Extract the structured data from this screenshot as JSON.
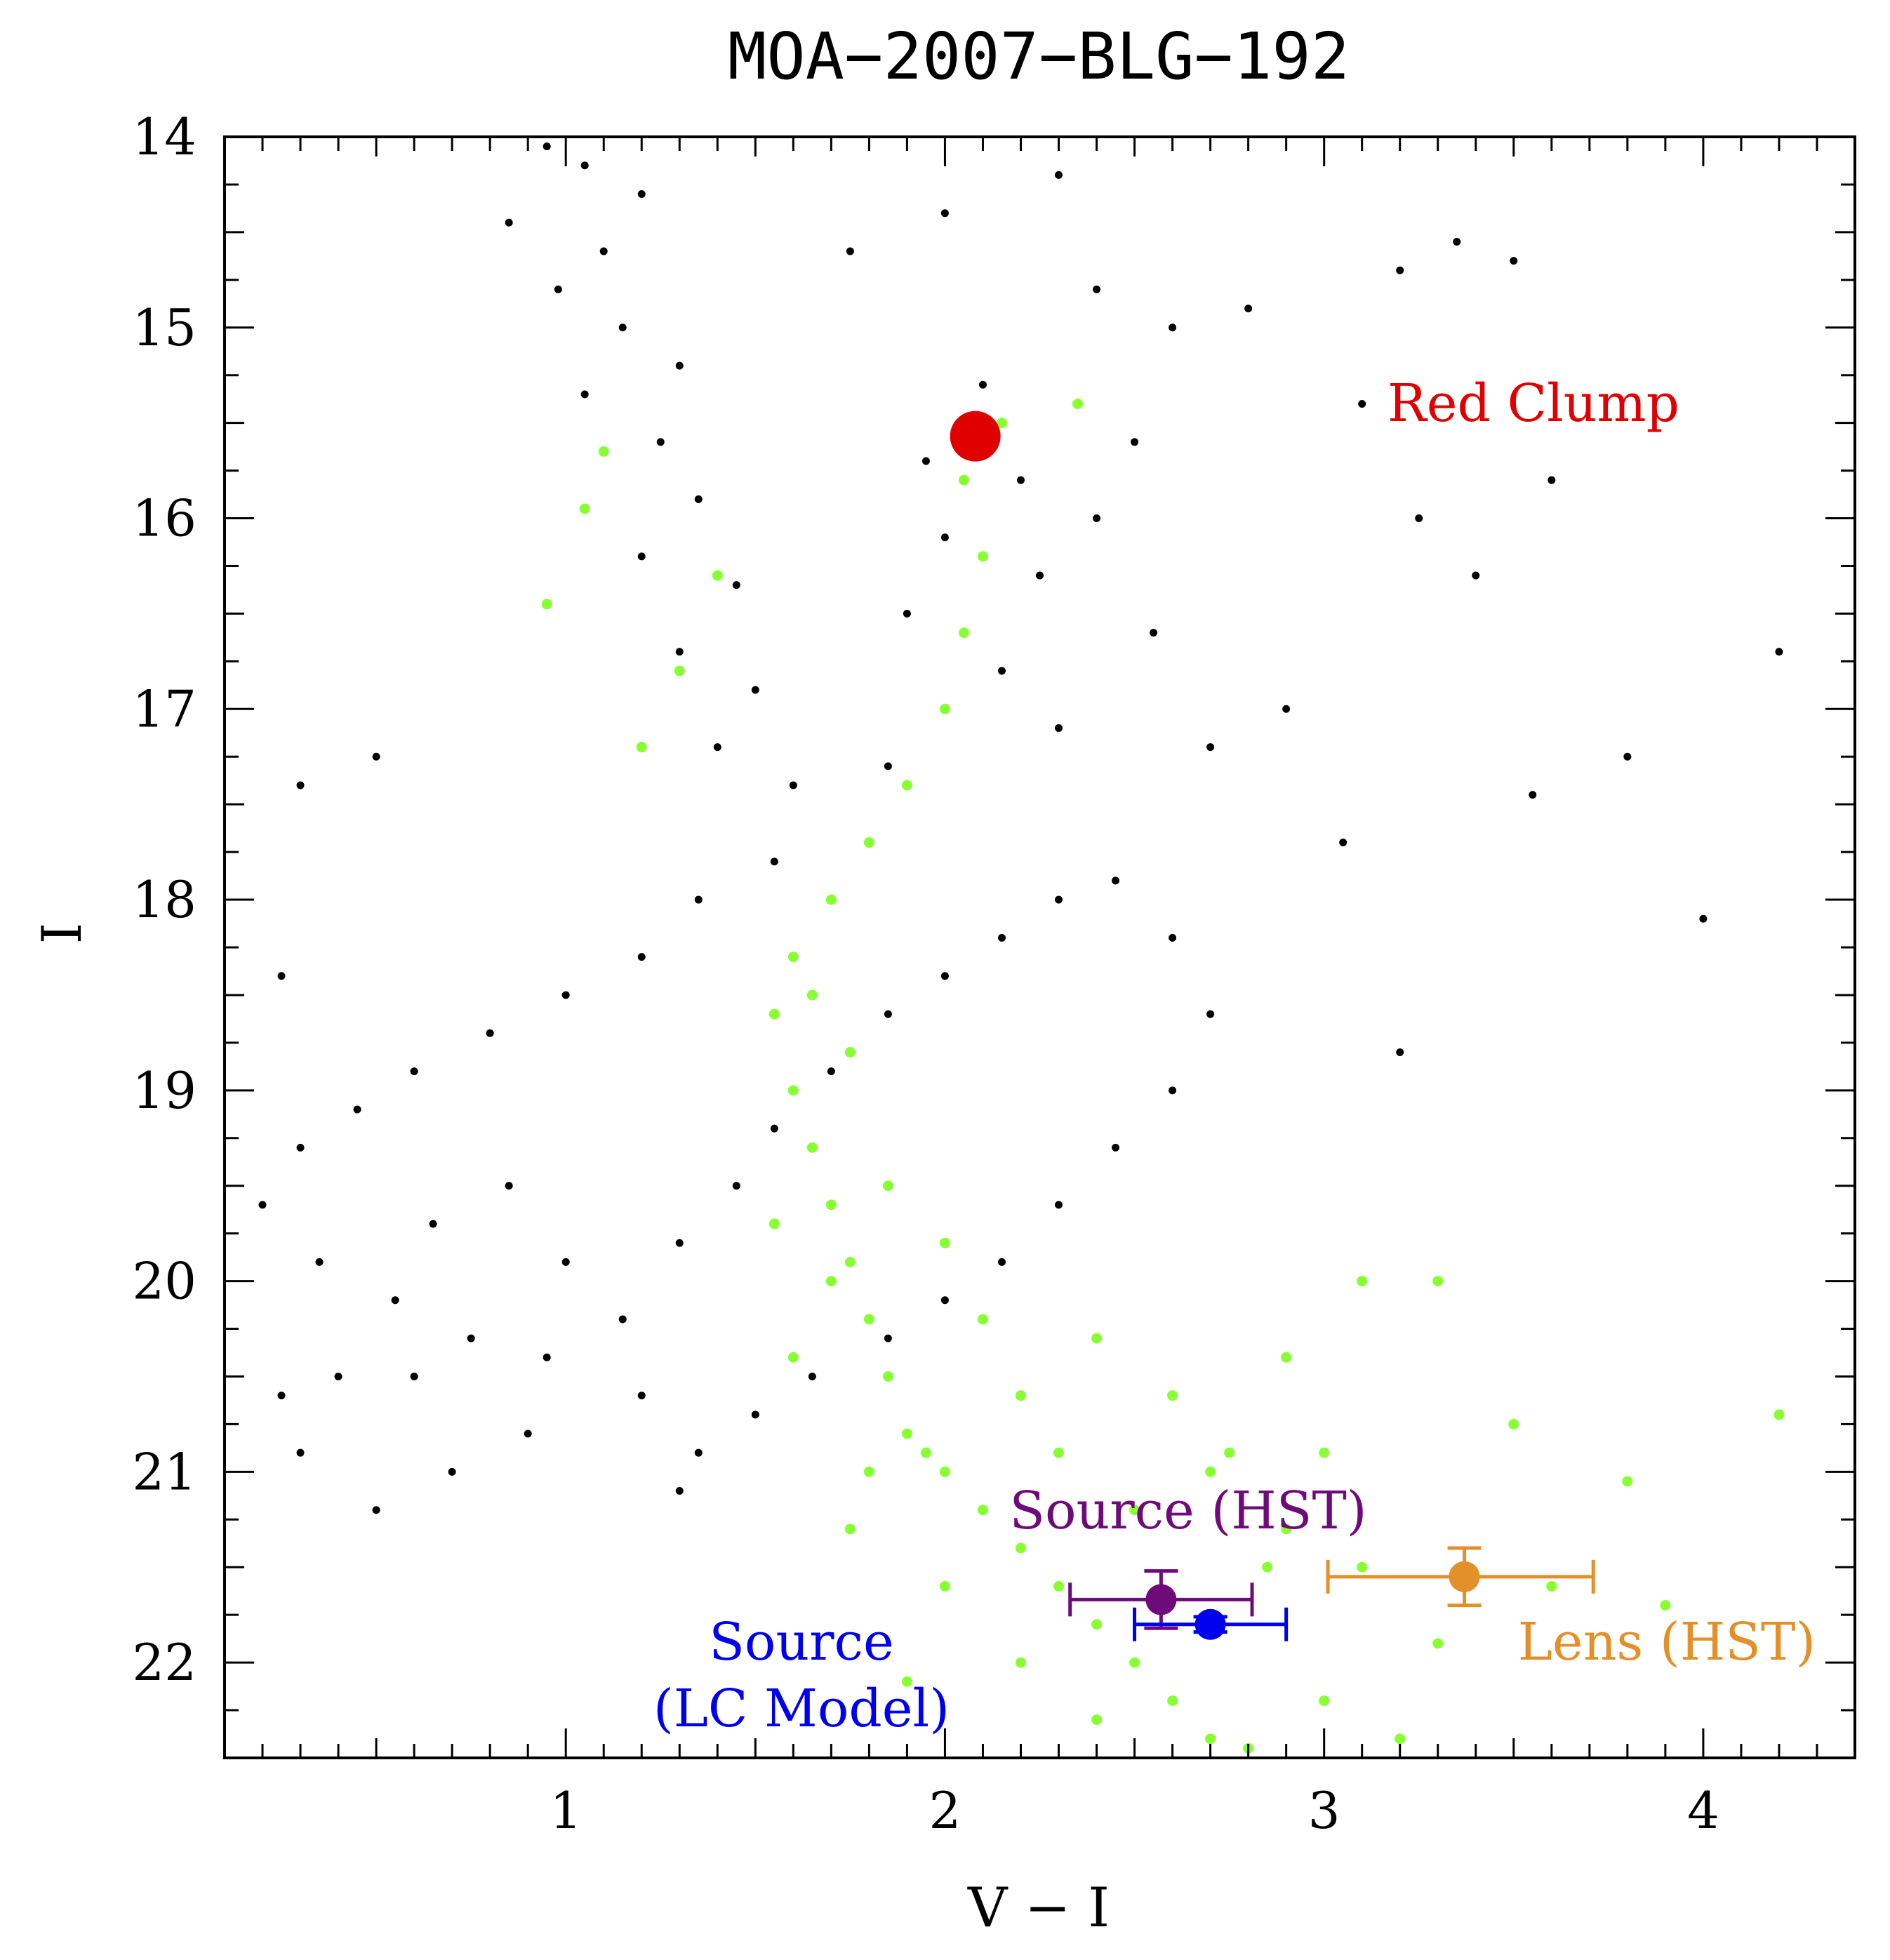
{
  "chart_data": {
    "type": "scatter",
    "title": "MOA−2007−BLG−192",
    "xlabel": "V − I",
    "ylabel": "I",
    "xlim": [
      0.1,
      4.4
    ],
    "ylim": [
      22.5,
      14
    ],
    "y_inverted": true,
    "grid": false,
    "x_ticks": [
      {
        "value": 1,
        "label": "1"
      },
      {
        "value": 2,
        "label": "2"
      },
      {
        "value": 3,
        "label": "3"
      },
      {
        "value": 4,
        "label": "4"
      }
    ],
    "y_ticks": [
      {
        "value": 14,
        "label": "14"
      },
      {
        "value": 15,
        "label": "15"
      },
      {
        "value": 16,
        "label": "16"
      },
      {
        "value": 17,
        "label": "17"
      },
      {
        "value": 18,
        "label": "18"
      },
      {
        "value": 19,
        "label": "19"
      },
      {
        "value": 20,
        "label": "20"
      },
      {
        "value": 21,
        "label": "21"
      },
      {
        "value": 22,
        "label": "22"
      }
    ],
    "field_stars": {
      "color": "#000000",
      "description_points": "dense cloud of field stars",
      "points": [
        [
          0.95,
          14.05
        ],
        [
          1.05,
          14.15
        ],
        [
          1.2,
          14.3
        ],
        [
          0.85,
          14.45
        ],
        [
          1.1,
          14.6
        ],
        [
          0.98,
          14.8
        ],
        [
          1.15,
          15.0
        ],
        [
          1.3,
          15.2
        ],
        [
          1.05,
          15.35
        ],
        [
          1.25,
          15.6
        ],
        [
          1.35,
          15.9
        ],
        [
          1.2,
          16.2
        ],
        [
          1.45,
          16.35
        ],
        [
          1.3,
          16.7
        ],
        [
          1.5,
          16.9
        ],
        [
          1.4,
          17.2
        ],
        [
          1.6,
          17.4
        ],
        [
          1.55,
          17.8
        ],
        [
          1.35,
          18.0
        ],
        [
          1.2,
          18.3
        ],
        [
          1.0,
          18.5
        ],
        [
          0.8,
          18.7
        ],
        [
          0.6,
          18.9
        ],
        [
          0.45,
          19.1
        ],
        [
          0.3,
          19.3
        ],
        [
          0.2,
          19.6
        ],
        [
          0.35,
          19.9
        ],
        [
          0.55,
          20.1
        ],
        [
          0.75,
          20.3
        ],
        [
          0.95,
          20.4
        ],
        [
          1.15,
          20.2
        ],
        [
          1.3,
          19.8
        ],
        [
          1.45,
          19.5
        ],
        [
          1.55,
          19.2
        ],
        [
          1.7,
          18.9
        ],
        [
          1.85,
          18.6
        ],
        [
          2.0,
          18.4
        ],
        [
          2.15,
          18.2
        ],
        [
          2.3,
          18.0
        ],
        [
          2.45,
          17.9
        ],
        [
          2.6,
          18.2
        ],
        [
          2.7,
          18.6
        ],
        [
          2.6,
          19.0
        ],
        [
          2.45,
          19.3
        ],
        [
          2.3,
          19.6
        ],
        [
          2.15,
          19.9
        ],
        [
          2.0,
          20.1
        ],
        [
          1.85,
          20.3
        ],
        [
          1.65,
          20.5
        ],
        [
          1.5,
          20.7
        ],
        [
          2.05,
          15.5
        ],
        [
          2.1,
          15.3
        ],
        [
          1.95,
          15.7
        ],
        [
          2.2,
          15.8
        ],
        [
          2.0,
          16.1
        ],
        [
          2.25,
          16.3
        ],
        [
          1.9,
          16.5
        ],
        [
          2.15,
          16.8
        ],
        [
          2.3,
          17.1
        ],
        [
          1.85,
          17.3
        ],
        [
          2.0,
          14.4
        ],
        [
          2.3,
          14.2
        ],
        [
          1.75,
          14.6
        ],
        [
          2.4,
          14.8
        ],
        [
          2.6,
          15.0
        ],
        [
          2.8,
          14.9
        ],
        [
          2.5,
          15.6
        ],
        [
          2.4,
          16.0
        ],
        [
          2.55,
          16.6
        ],
        [
          2.7,
          17.2
        ],
        [
          0.85,
          19.5
        ],
        [
          0.65,
          19.7
        ],
        [
          1.0,
          19.9
        ],
        [
          0.4,
          20.5
        ],
        [
          0.25,
          20.6
        ],
        [
          0.6,
          20.5
        ],
        [
          0.9,
          20.8
        ],
        [
          1.2,
          20.6
        ],
        [
          1.35,
          20.9
        ],
        [
          0.3,
          20.9
        ],
        [
          3.1,
          15.4
        ],
        [
          3.25,
          16.0
        ],
        [
          3.4,
          16.3
        ],
        [
          3.6,
          15.8
        ],
        [
          4.2,
          16.7
        ],
        [
          3.8,
          17.25
        ],
        [
          3.55,
          17.45
        ],
        [
          4.0,
          18.1
        ],
        [
          3.35,
          14.55
        ],
        [
          3.5,
          14.65
        ],
        [
          3.2,
          14.7
        ],
        [
          2.9,
          17.0
        ],
        [
          3.05,
          17.7
        ],
        [
          3.2,
          18.8
        ],
        [
          0.5,
          21.2
        ],
        [
          0.7,
          21.0
        ],
        [
          1.3,
          21.1
        ],
        [
          0.3,
          17.4
        ],
        [
          0.5,
          17.25
        ],
        [
          0.25,
          18.4
        ]
      ]
    },
    "cleaned_stars": {
      "color": "#88ff33",
      "description_points": "main-sequence / subgiant stars",
      "points": [
        [
          1.6,
          19.0
        ],
        [
          1.65,
          19.3
        ],
        [
          1.7,
          19.6
        ],
        [
          1.75,
          19.9
        ],
        [
          1.8,
          20.2
        ],
        [
          1.85,
          20.5
        ],
        [
          1.9,
          20.8
        ],
        [
          2.0,
          21.0
        ],
        [
          2.1,
          21.2
        ],
        [
          2.2,
          21.4
        ],
        [
          2.3,
          21.6
        ],
        [
          2.4,
          21.8
        ],
        [
          2.5,
          22.0
        ],
        [
          2.6,
          22.2
        ],
        [
          2.7,
          22.4
        ],
        [
          2.8,
          22.45
        ],
        [
          1.55,
          18.6
        ],
        [
          1.6,
          18.3
        ],
        [
          1.7,
          18.0
        ],
        [
          1.8,
          17.7
        ],
        [
          1.9,
          17.4
        ],
        [
          2.0,
          17.0
        ],
        [
          2.05,
          16.6
        ],
        [
          2.1,
          16.2
        ],
        [
          2.05,
          15.8
        ],
        [
          2.15,
          15.5
        ],
        [
          2.35,
          15.4
        ],
        [
          1.4,
          16.3
        ],
        [
          1.3,
          16.8
        ],
        [
          1.2,
          17.2
        ],
        [
          0.95,
          16.45
        ],
        [
          1.05,
          15.95
        ],
        [
          1.1,
          15.65
        ],
        [
          2.5,
          21.2
        ],
        [
          2.7,
          21.0
        ],
        [
          2.9,
          21.3
        ],
        [
          3.1,
          21.5
        ],
        [
          3.3,
          21.9
        ],
        [
          3.0,
          22.2
        ],
        [
          3.2,
          22.4
        ],
        [
          3.6,
          21.6
        ],
        [
          3.9,
          21.7
        ],
        [
          4.2,
          20.7
        ],
        [
          3.8,
          21.05
        ],
        [
          3.5,
          20.75
        ],
        [
          3.3,
          20.0
        ],
        [
          3.1,
          20.0
        ],
        [
          2.9,
          20.4
        ],
        [
          3.0,
          20.9
        ],
        [
          2.3,
          20.9
        ],
        [
          1.85,
          19.5
        ],
        [
          2.0,
          19.8
        ],
        [
          2.1,
          20.2
        ],
        [
          2.2,
          20.6
        ],
        [
          1.95,
          20.9
        ],
        [
          1.75,
          21.3
        ],
        [
          2.0,
          21.6
        ],
        [
          2.2,
          22.0
        ],
        [
          2.4,
          22.3
        ],
        [
          1.9,
          22.1
        ],
        [
          1.65,
          18.5
        ],
        [
          1.75,
          18.8
        ],
        [
          1.55,
          19.7
        ],
        [
          1.7,
          20.0
        ],
        [
          1.6,
          20.4
        ],
        [
          1.8,
          21.0
        ],
        [
          2.4,
          20.3
        ],
        [
          2.6,
          20.6
        ],
        [
          2.75,
          20.9
        ],
        [
          2.85,
          21.5
        ]
      ]
    },
    "markers": [
      {
        "name": "Red Clump",
        "x": 2.08,
        "y": 15.57,
        "color": "#e00000",
        "label": "Red Clump"
      },
      {
        "name": "Source (HST)",
        "x": 2.57,
        "y": 21.67,
        "xerr": [
          0.24,
          0.24
        ],
        "yerr": [
          0.15,
          0.15
        ],
        "color": "#6e0a7a",
        "label": "Source (HST)"
      },
      {
        "name": "Source (LC Model)",
        "x": 2.7,
        "y": 21.8,
        "xerr": [
          0.2,
          0.2
        ],
        "yerr": [
          0.04,
          0.04
        ],
        "color": "#0000ee",
        "label": "Source (LC Model)"
      },
      {
        "name": "Lens (HST)",
        "x": 3.37,
        "y": 21.55,
        "xerr": [
          0.36,
          0.34
        ],
        "yerr": [
          0.15,
          0.15
        ],
        "color": "#e3902a",
        "label": "Lens (HST)"
      }
    ],
    "annotations": [
      {
        "text": "Red Clump",
        "color": "#e00000"
      },
      {
        "text": "Source (HST)",
        "color": "#6e0a7a"
      },
      {
        "text": "Source",
        "color": "#0000ee"
      },
      {
        "text": "(LC Model)",
        "color": "#0000ee"
      },
      {
        "text": "Lens (HST)",
        "color": "#e3902a"
      }
    ]
  }
}
